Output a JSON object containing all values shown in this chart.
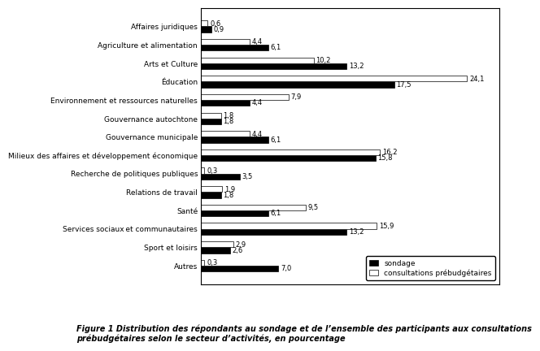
{
  "categories": [
    "Affaires juridiques",
    "Agriculture et alimentation",
    "Arts et Culture",
    "Éducation",
    "Environnement et ressources naturelles",
    "Gouvernance autochtone",
    "Gouvernance municipale",
    "Milieux des affaires et développement économique",
    "Recherche de politiques publiques",
    "Relations de travail",
    "Santé",
    "Services sociaux et communautaires",
    "Sport et loisirs",
    "Autres"
  ],
  "sondage": [
    0.9,
    6.1,
    13.2,
    17.5,
    4.4,
    1.8,
    6.1,
    15.8,
    3.5,
    1.8,
    6.1,
    13.2,
    2.6,
    7.0
  ],
  "consultations": [
    0.6,
    4.4,
    10.2,
    24.1,
    7.9,
    1.8,
    4.4,
    16.2,
    0.3,
    1.9,
    9.5,
    15.9,
    2.9,
    0.3
  ],
  "sondage_color": "#000000",
  "consultations_color": "#ffffff",
  "bar_edge_color": "#000000",
  "background_color": "#ffffff",
  "label_fontsize": 6.5,
  "value_fontsize": 6.0,
  "legend_fontsize": 6.5,
  "caption_fontsize": 7.0,
  "xlim": [
    0,
    27
  ],
  "figure_caption": "Figure 1 Distribution des répondants au sondage et de l’ensemble des participants aux consultations\nprébudgétaires selon le secteur d’activités, en pourcentage"
}
